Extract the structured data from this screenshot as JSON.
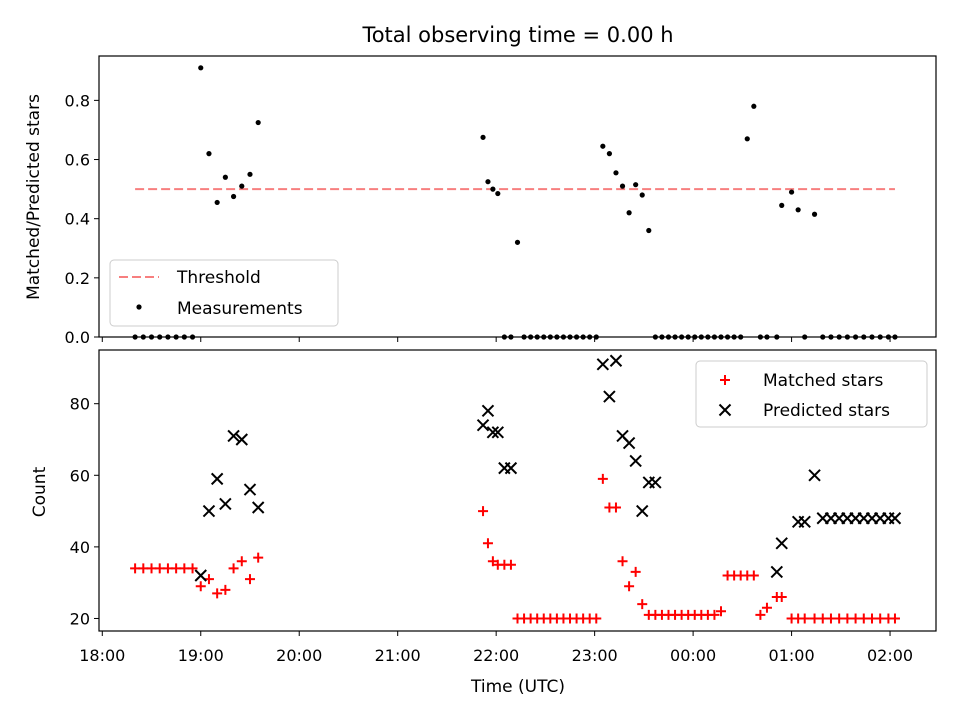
{
  "chart_data": [
    {
      "type": "scatter",
      "title": "Total observing time = 0.00 h",
      "ylabel": "Matched/Predicted stars",
      "xlabel": "",
      "ylim": [
        0,
        0.95
      ],
      "yticks": [
        0.0,
        0.2,
        0.4,
        0.6,
        0.8
      ],
      "ytick_labels": [
        "0.0",
        "0.2",
        "0.4",
        "0.6",
        "0.8"
      ],
      "legend": {
        "placement": "lower-left",
        "entries": [
          {
            "label": "Threshold",
            "style": "dashed-line",
            "color": "#f77f7f"
          },
          {
            "label": "Measurements",
            "style": "dot",
            "color": "#000000"
          }
        ]
      },
      "threshold": {
        "name": "Threshold",
        "y": 0.5,
        "x_start": "18:20",
        "x_end": "02:03",
        "color": "#f77f7f"
      },
      "series": [
        {
          "name": "Measurements",
          "color": "#000000",
          "x": [
            "18:20",
            "18:25",
            "18:30",
            "18:35",
            "18:40",
            "18:45",
            "18:50",
            "18:55",
            "19:00",
            "19:05",
            "19:10",
            "19:15",
            "19:20",
            "19:25",
            "19:30",
            "19:35",
            "21:52",
            "21:55",
            "21:58",
            "22:01",
            "22:05",
            "22:09",
            "22:13",
            "22:17",
            "22:21",
            "22:25",
            "22:29",
            "22:33",
            "22:37",
            "22:41",
            "22:45",
            "22:49",
            "22:53",
            "22:57",
            "23:01",
            "23:05",
            "23:09",
            "23:13",
            "23:17",
            "23:21",
            "23:25",
            "23:29",
            "23:33",
            "23:37",
            "23:41",
            "23:45",
            "23:49",
            "23:53",
            "23:57",
            "00:01",
            "00:05",
            "00:09",
            "00:13",
            "00:17",
            "00:21",
            "00:25",
            "00:29",
            "00:33",
            "00:37",
            "00:41",
            "00:45",
            "00:51",
            "00:54",
            "01:00",
            "01:04",
            "01:08",
            "01:14",
            "01:19",
            "01:24",
            "01:29",
            "01:34",
            "01:39",
            "01:44",
            "01:49",
            "01:54",
            "01:59",
            "02:03"
          ],
          "y": [
            0,
            0,
            0,
            0,
            0,
            0,
            0,
            0,
            0.91,
            0.62,
            0.455,
            0.54,
            0.475,
            0.51,
            0.55,
            0.725,
            0.675,
            0.525,
            0.5,
            0.485,
            0,
            0,
            0.32,
            0,
            0,
            0,
            0,
            0,
            0,
            0,
            0,
            0,
            0,
            0,
            0,
            0.645,
            0.62,
            0.555,
            0.51,
            0.42,
            0.515,
            0.48,
            0.36,
            0,
            0,
            0,
            0,
            0,
            0,
            0,
            0,
            0,
            0,
            0,
            0,
            0,
            0,
            0.67,
            0.78,
            0,
            0,
            0,
            0.445,
            0.49,
            0.43,
            0,
            0.415,
            0,
            0,
            0,
            0,
            0,
            0,
            0,
            0,
            0,
            0
          ]
        }
      ]
    },
    {
      "type": "scatter",
      "title": "",
      "xlabel": "Time (UTC)",
      "ylabel": "Count",
      "ylim": [
        16.5,
        95
      ],
      "yticks": [
        20,
        40,
        60,
        80
      ],
      "ytick_labels": [
        "20",
        "40",
        "60",
        "80"
      ],
      "xlim": [
        "17:58",
        "02:28"
      ],
      "xticks": [
        "18:00",
        "19:00",
        "20:00",
        "21:00",
        "22:00",
        "23:00",
        "00:00",
        "01:00",
        "02:00"
      ],
      "legend": {
        "placement": "top-right",
        "entries": [
          {
            "label": "Matched stars",
            "style": "plus",
            "color": "#ff0000"
          },
          {
            "label": "Predicted stars",
            "style": "x",
            "color": "#000000"
          }
        ]
      },
      "series": [
        {
          "name": "Matched stars",
          "color": "#ff0000",
          "marker": "plus",
          "x": [
            "18:20",
            "18:25",
            "18:30",
            "18:35",
            "18:40",
            "18:45",
            "18:50",
            "18:55",
            "19:00",
            "19:05",
            "19:10",
            "19:15",
            "19:20",
            "19:25",
            "19:30",
            "19:35",
            "21:52",
            "21:55",
            "21:58",
            "22:01",
            "22:05",
            "22:09",
            "22:13",
            "22:17",
            "22:21",
            "22:25",
            "22:29",
            "22:33",
            "22:37",
            "22:41",
            "22:45",
            "22:49",
            "22:53",
            "22:57",
            "23:01",
            "23:05",
            "23:09",
            "23:13",
            "23:17",
            "23:21",
            "23:25",
            "23:29",
            "23:33",
            "23:37",
            "23:41",
            "23:45",
            "23:49",
            "23:53",
            "23:57",
            "00:01",
            "00:05",
            "00:09",
            "00:13",
            "00:17",
            "00:21",
            "00:25",
            "00:29",
            "00:33",
            "00:37",
            "00:41",
            "00:45",
            "00:51",
            "00:54",
            "01:00",
            "01:04",
            "01:08",
            "01:14",
            "01:19",
            "01:24",
            "01:29",
            "01:34",
            "01:39",
            "01:44",
            "01:49",
            "01:54",
            "01:59",
            "02:03"
          ],
          "y": [
            34,
            34,
            34,
            34,
            34,
            34,
            34,
            34,
            29,
            31,
            27,
            28,
            34,
            36,
            31,
            37,
            50,
            41,
            36,
            35,
            35,
            35,
            20,
            20,
            20,
            20,
            20,
            20,
            20,
            20,
            20,
            20,
            20,
            20,
            20,
            59,
            51,
            51,
            36,
            29,
            33,
            24,
            21,
            21,
            21,
            21,
            21,
            21,
            21,
            21,
            21,
            21,
            21,
            22,
            32,
            32,
            32,
            32,
            32,
            21,
            23,
            26,
            26,
            20,
            20,
            20,
            20,
            20,
            20,
            20,
            20,
            20,
            20,
            20,
            20,
            20,
            20
          ]
        },
        {
          "name": "Predicted stars",
          "color": "#000000",
          "marker": "x",
          "x": [
            "19:00",
            "19:05",
            "19:10",
            "19:15",
            "19:20",
            "19:25",
            "19:30",
            "19:35",
            "21:52",
            "21:55",
            "21:58",
            "22:01",
            "22:05",
            "22:09",
            "23:05",
            "23:09",
            "23:13",
            "23:17",
            "23:21",
            "23:25",
            "23:29",
            "23:33",
            "23:37",
            "00:51",
            "00:54",
            "01:04",
            "01:08",
            "01:14",
            "01:19",
            "01:24",
            "01:29",
            "01:34",
            "01:39",
            "01:44",
            "01:49",
            "01:54",
            "01:59",
            "02:03"
          ],
          "y": [
            32,
            50,
            59,
            52,
            71,
            70,
            56,
            51,
            74,
            78,
            72,
            72,
            62,
            62,
            91,
            82,
            92,
            71,
            69,
            64,
            50,
            58,
            58,
            33,
            41,
            47,
            47,
            60,
            48,
            48,
            48,
            48,
            48,
            48,
            48,
            48,
            48,
            48
          ]
        }
      ]
    }
  ]
}
